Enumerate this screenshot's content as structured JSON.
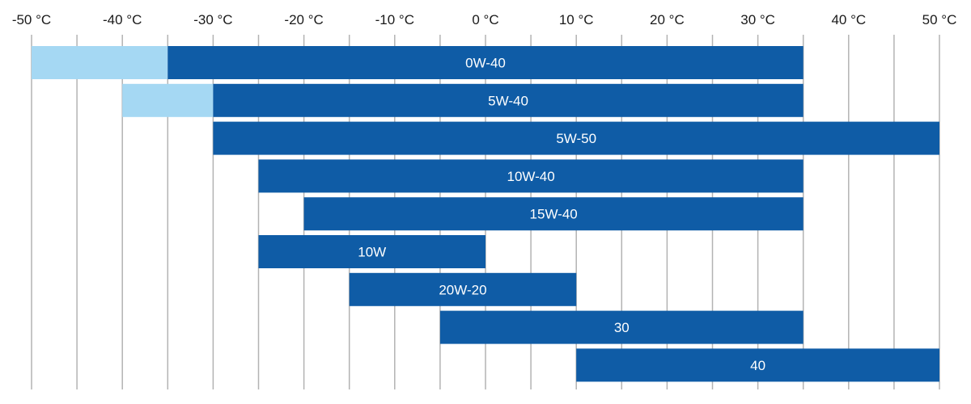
{
  "chart_data": {
    "type": "bar",
    "orientation": "horizontal",
    "range_bars": true,
    "x_ticks": [
      -50,
      -45,
      -40,
      -35,
      -30,
      -25,
      -20,
      -15,
      -10,
      -5,
      0,
      5,
      10,
      15,
      20,
      25,
      30,
      35,
      40,
      45,
      50
    ],
    "x_tick_labels": [
      {
        "value": -50,
        "label": "-50 °C"
      },
      {
        "value": -40,
        "label": "-40 °C"
      },
      {
        "value": -30,
        "label": "-30 °C"
      },
      {
        "value": -20,
        "label": "-20 °C"
      },
      {
        "value": -10,
        "label": "-10 °C"
      },
      {
        "value": 0,
        "label": "0 °C"
      },
      {
        "value": 10,
        "label": "10 °C"
      },
      {
        "value": 20,
        "label": "20 °C"
      },
      {
        "value": 30,
        "label": "30 °C"
      },
      {
        "value": 40,
        "label": "40 °C"
      },
      {
        "value": 50,
        "label": "50 °C"
      }
    ],
    "xlim": [
      -50,
      50
    ],
    "grid": "vertical",
    "bars": [
      {
        "label": "0W-40",
        "min": -35,
        "max": 35,
        "extended_min": -50
      },
      {
        "label": "5W-40",
        "min": -30,
        "max": 35,
        "extended_min": -40
      },
      {
        "label": "5W-50",
        "min": -30,
        "max": 50
      },
      {
        "label": "10W-40",
        "min": -25,
        "max": 35
      },
      {
        "label": "15W-40",
        "min": -20,
        "max": 35
      },
      {
        "label": "10W",
        "min": -25,
        "max": 0
      },
      {
        "label": "20W-20",
        "min": -15,
        "max": 10
      },
      {
        "label": "30",
        "min": -5,
        "max": 35
      },
      {
        "label": "40",
        "min": 10,
        "max": 50
      }
    ],
    "colors": {
      "main": "#0f5ca6",
      "extended": "#a5d8f3",
      "grid": "#b3b3b3"
    }
  }
}
